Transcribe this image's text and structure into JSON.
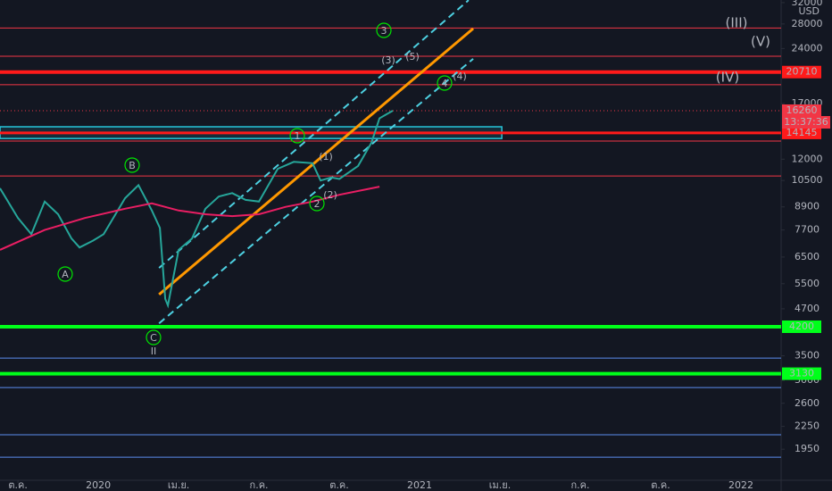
{
  "chart_data": {
    "type": "line",
    "log_scale": true,
    "currency": "USD",
    "xlim": [
      -0.67,
      28.5
    ],
    "xticks": [
      {
        "value": 0,
        "label": "ต.ค."
      },
      {
        "value": 3,
        "label": "2020"
      },
      {
        "value": 6,
        "label": "เม.ย."
      },
      {
        "value": 9,
        "label": "ก.ค."
      },
      {
        "value": 12,
        "label": "ต.ค."
      },
      {
        "value": 15,
        "label": "2021"
      },
      {
        "value": 18,
        "label": "เม.ย."
      },
      {
        "value": 21,
        "label": "ก.ค."
      },
      {
        "value": 24,
        "label": "ต.ค."
      },
      {
        "value": 27,
        "label": "2022"
      }
    ],
    "ylim": [
      1605,
      32530
    ],
    "yticks": [
      32000,
      28000,
      24000,
      17000,
      12000,
      10500,
      8900,
      7700,
      6500,
      5500,
      4700,
      3500,
      3000,
      2600,
      2250,
      1950
    ],
    "series": [
      {
        "color": "#26a69a",
        "x": [
          -0.67,
          0,
          0.5,
          1,
          1.5,
          2,
          2.3,
          2.8,
          3.2,
          4,
          4.5,
          5,
          5.3,
          5.5,
          5.6,
          6,
          6.5,
          7,
          7.5,
          8,
          8.5,
          9,
          9.7,
          10.3,
          11,
          11.3,
          11.7,
          12,
          12.7,
          13.2,
          13.5,
          14
        ],
        "values": [
          10000,
          8300,
          7500,
          9200,
          8500,
          7300,
          6900,
          7200,
          7500,
          9400,
          10200,
          8700,
          7800,
          5000,
          4800,
          6800,
          7300,
          8800,
          9500,
          9700,
          9300,
          9200,
          11300,
          11800,
          11700,
          10500,
          10700,
          10600,
          11500,
          13300,
          15500,
          16260
        ]
      },
      {
        "color": "#e91e63",
        "x": [
          -0.67,
          1,
          2.5,
          4,
          5,
          6,
          7,
          8,
          9,
          10,
          11,
          12,
          13.5
        ],
        "values": [
          6800,
          7700,
          8300,
          8800,
          9100,
          8700,
          8500,
          8400,
          8500,
          8900,
          9200,
          9600,
          10100
        ]
      }
    ],
    "levels": [
      {
        "value": 27300,
        "color": "#f23645",
        "width": 1,
        "labeled": false
      },
      {
        "value": 22870,
        "color": "#f23645",
        "width": 1,
        "labeled": false
      },
      {
        "value": 20710,
        "color": "#ff1a1a",
        "width": 4,
        "labeled": true
      },
      {
        "value": 19140,
        "color": "#f23645",
        "width": 1,
        "labeled": false
      },
      {
        "value": 14145,
        "color": "#ff1a1a",
        "width": 3,
        "labeled": true
      },
      {
        "value": 13440,
        "color": "#f23645",
        "width": 1,
        "labeled": false
      },
      {
        "value": 10800,
        "color": "#f23645",
        "width": 1,
        "labeled": false
      },
      {
        "value": 4200,
        "color": "#00ff1a",
        "width": 4,
        "labeled": true
      },
      {
        "value": 3450,
        "color": "#5b8def",
        "width": 1,
        "labeled": false
      },
      {
        "value": 3130,
        "color": "#00ff1a",
        "width": 4,
        "labeled": true
      },
      {
        "value": 2870,
        "color": "#5b8def",
        "width": 1,
        "labeled": false
      },
      {
        "value": 2135,
        "color": "#5b8def",
        "width": 1,
        "labeled": false
      },
      {
        "value": 1855,
        "color": "#5b8def",
        "width": 1,
        "labeled": false
      }
    ],
    "zone": {
      "xlim": [
        -0.67,
        18.07
      ],
      "ylim": [
        13660,
        14700
      ],
      "color": "#26c6da"
    },
    "trendlines": [
      {
        "x": [
          5.27,
          17
        ],
        "values": [
          5140,
          27200
        ],
        "color": "#ff9800",
        "dashed": false
      },
      {
        "x": [
          5.27,
          16.83
        ],
        "values": [
          6070,
          32500
        ],
        "color": "#4dd0e1",
        "dashed": true
      },
      {
        "x": [
          5.27,
          17
        ],
        "values": [
          4290,
          22500
        ],
        "color": "#4dd0e1",
        "dashed": true
      }
    ],
    "current_price": 16260,
    "countdown": "13:37:36",
    "annotations": [
      {
        "text": "3",
        "color": "#00e600",
        "circled": true
      },
      {
        "text": "1",
        "color": "#00e600",
        "circled": true
      },
      {
        "text": "2",
        "color": "#00e600",
        "circled": true
      },
      {
        "text": "4",
        "color": "#00e600",
        "circled": true
      },
      {
        "text": "A",
        "color": "#00e600",
        "circled": true
      },
      {
        "text": "B",
        "color": "#00e600",
        "circled": true
      },
      {
        "text": "C",
        "color": "#00e600",
        "circled": true
      },
      {
        "text": "II",
        "color": "#ff1a1a",
        "circled": false
      },
      {
        "text": "(III)",
        "color": "#4dd0e1",
        "circled": false
      },
      {
        "text": "(V)",
        "color": "#4dd0e1",
        "circled": false
      },
      {
        "text": "(IV)",
        "color": "#4dd0e1",
        "circled": false
      },
      {
        "text": "(1)",
        "color": "#3f6fff",
        "circled": false
      },
      {
        "text": "(2)",
        "color": "#3f6fff",
        "circled": false
      },
      {
        "text": "(3)",
        "color": "#3f6fff",
        "circled": false
      },
      {
        "text": "(5)",
        "color": "#3f6fff",
        "circled": false
      },
      {
        "text": "(4)",
        "color": "#3f6fff",
        "circled": false
      }
    ]
  }
}
